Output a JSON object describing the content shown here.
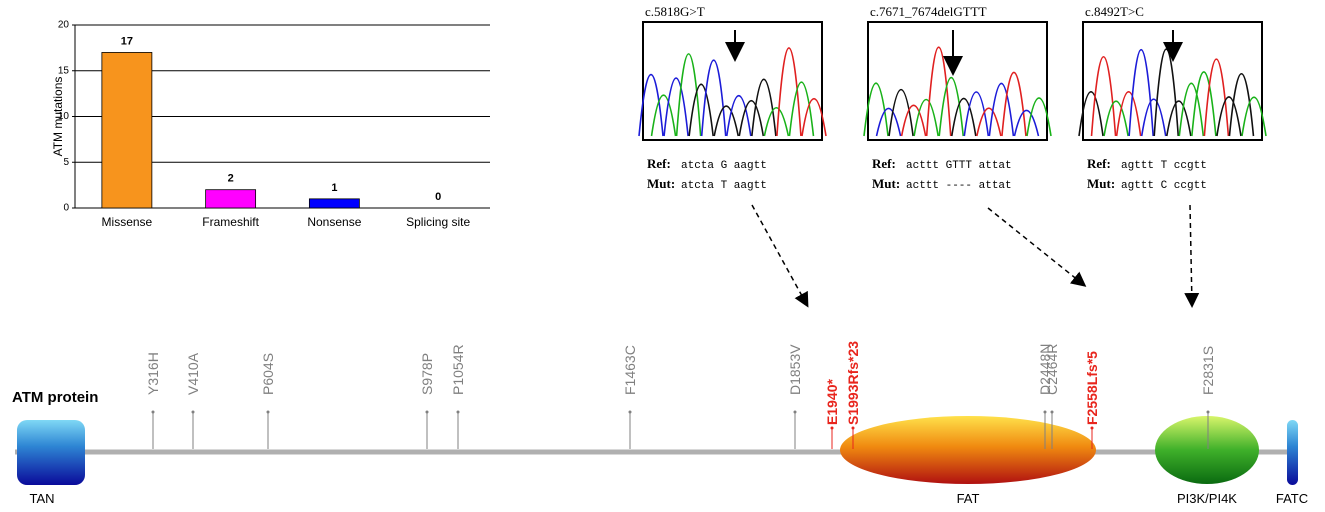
{
  "chart_data": {
    "type": "bar",
    "ylabel": "ATM mutations",
    "categories": [
      "Missense",
      "Frameshift",
      "Nonsense",
      "Splicing site"
    ],
    "values": [
      17,
      2,
      1,
      0
    ],
    "colors": [
      "#f7941d",
      "#ff00ff",
      "#0000ff",
      "#888888"
    ],
    "ylim": [
      0,
      20
    ],
    "yticks": [
      0,
      5,
      10,
      15,
      20
    ],
    "grid": true
  },
  "sequencing": [
    {
      "label": "c.5818G>T",
      "ref_label": "Ref:",
      "ref_seq": "atcta G aagtt",
      "mut_label": "Mut:",
      "mut_seq": "atcta T aagtt"
    },
    {
      "label": "c.7671_7674delGTTT",
      "ref_label": "Ref:",
      "ref_seq": "acttt GTTT attat",
      "mut_label": "Mut:",
      "mut_seq": "acttt ---- attat"
    },
    {
      "label": "c.8492T>C",
      "ref_label": "Ref:",
      "ref_seq": "agttt T ccgtt",
      "mut_label": "Mut:",
      "mut_seq": "agttt C ccgtt"
    }
  ],
  "protein": {
    "title": "ATM protein",
    "domains": [
      "TAN",
      "FAT",
      "PI3K/PI4K",
      "FATC"
    ],
    "mutations": [
      {
        "label": "Y316H",
        "color": "#808080"
      },
      {
        "label": "V410A",
        "color": "#808080"
      },
      {
        "label": "P604S",
        "color": "#808080"
      },
      {
        "label": "S978P",
        "color": "#808080"
      },
      {
        "label": "P1054R",
        "color": "#808080"
      },
      {
        "label": "F1463C",
        "color": "#808080"
      },
      {
        "label": "D1853V",
        "color": "#808080"
      },
      {
        "label": "E1940*",
        "color": "#e8251d"
      },
      {
        "label": "S1993Rfs*23",
        "color": "#e8251d"
      },
      {
        "label": "D2448N",
        "color": "#808080"
      },
      {
        "label": "C2464R",
        "color": "#808080"
      },
      {
        "label": "F2558Lfs*5",
        "color": "#e8251d"
      },
      {
        "label": "F2831S",
        "color": "#808080"
      }
    ]
  }
}
